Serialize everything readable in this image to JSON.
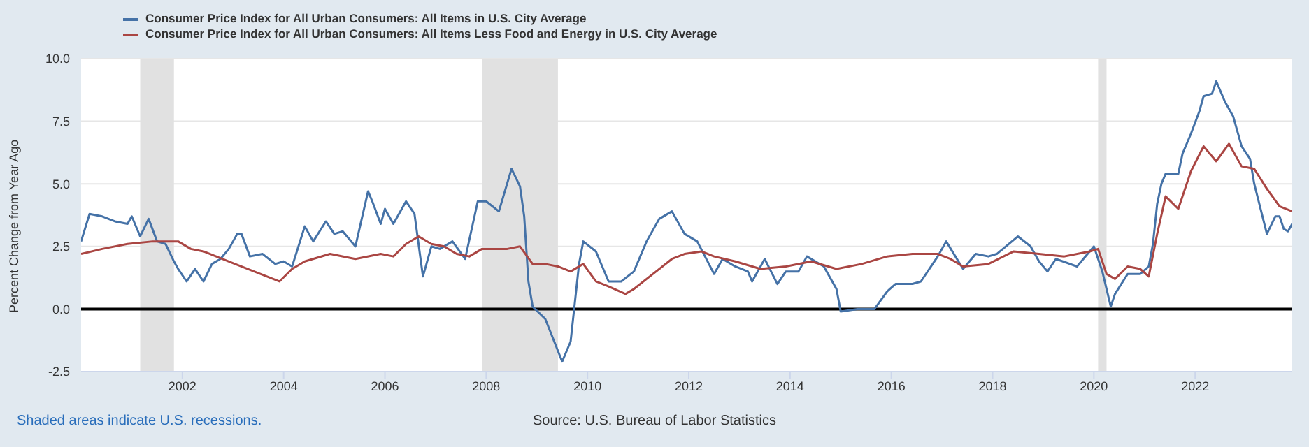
{
  "chart_data": {
    "type": "line",
    "ylabel": "Percent Change from Year Ago",
    "legend": "top left",
    "grid": "y",
    "marker": "none",
    "line_style": "solid",
    "xlim": [
      "2000-01",
      "2023-12"
    ],
    "xticks": [
      "2002",
      "2004",
      "2006",
      "2008",
      "2010",
      "2012",
      "2014",
      "2016",
      "2018",
      "2020",
      "2022"
    ],
    "ylim": [
      -2.5,
      10
    ],
    "yticks": [
      -2.5,
      {
        "value": 0,
        "label": "0.0"
      },
      2.5,
      {
        "value": 5,
        "label": "5.0"
      },
      7.5,
      {
        "value": 10,
        "label": "10.0"
      }
    ],
    "series": [
      {
        "name": "Consumer Price Index for All Urban Consumers: All Items in U.S. City Average",
        "color": "#4572a7",
        "x": [
          "2000-01",
          "2000-03",
          "2000-06",
          "2000-09",
          "2000-12",
          "2001-01",
          "2001-03",
          "2001-05",
          "2001-07",
          "2001-09",
          "2001-11",
          "2001-12",
          "2002-02",
          "2002-04",
          "2002-06",
          "2002-08",
          "2002-10",
          "2002-12",
          "2003-02",
          "2003-03",
          "2003-05",
          "2003-08",
          "2003-11",
          "2004-01",
          "2004-03",
          "2004-06",
          "2004-08",
          "2004-11",
          "2005-01",
          "2005-03",
          "2005-06",
          "2005-09",
          "2005-10",
          "2005-12",
          "2006-01",
          "2006-03",
          "2006-06",
          "2006-08",
          "2006-10",
          "2006-12",
          "2007-02",
          "2007-05",
          "2007-08",
          "2007-11",
          "2008-01",
          "2008-04",
          "2008-07",
          "2008-09",
          "2008-10",
          "2008-11",
          "2008-12",
          "2009-03",
          "2009-07",
          "2009-09",
          "2009-11",
          "2009-12",
          "2010-03",
          "2010-06",
          "2010-09",
          "2010-12",
          "2011-03",
          "2011-06",
          "2011-09",
          "2011-12",
          "2012-03",
          "2012-07",
          "2012-09",
          "2012-12",
          "2013-03",
          "2013-04",
          "2013-07",
          "2013-10",
          "2013-12",
          "2014-03",
          "2014-05",
          "2014-09",
          "2014-12",
          "2015-01",
          "2015-05",
          "2015-09",
          "2015-12",
          "2016-02",
          "2016-06",
          "2016-08",
          "2016-12",
          "2017-02",
          "2017-06",
          "2017-09",
          "2017-12",
          "2018-02",
          "2018-07",
          "2018-10",
          "2018-12",
          "2019-02",
          "2019-04",
          "2019-09",
          "2019-12",
          "2020-01",
          "2020-03",
          "2020-05",
          "2020-06",
          "2020-09",
          "2020-12",
          "2021-02",
          "2021-03",
          "2021-04",
          "2021-05",
          "2021-06",
          "2021-09",
          "2021-10",
          "2021-12",
          "2022-02",
          "2022-03",
          "2022-05",
          "2022-06",
          "2022-08",
          "2022-10",
          "2022-12",
          "2023-02",
          "2023-03",
          "2023-06",
          "2023-08",
          "2023-09",
          "2023-10",
          "2023-11",
          "2023-12"
        ],
        "values": [
          2.7,
          3.8,
          3.7,
          3.5,
          3.4,
          3.7,
          2.9,
          3.6,
          2.7,
          2.6,
          1.9,
          1.6,
          1.1,
          1.6,
          1.1,
          1.8,
          2.0,
          2.4,
          3.0,
          3.0,
          2.1,
          2.2,
          1.8,
          1.9,
          1.7,
          3.3,
          2.7,
          3.5,
          3.0,
          3.1,
          2.5,
          4.7,
          4.3,
          3.4,
          4.0,
          3.4,
          4.3,
          3.8,
          1.3,
          2.5,
          2.4,
          2.7,
          2.0,
          4.3,
          4.3,
          3.9,
          5.6,
          4.9,
          3.7,
          1.1,
          0.1,
          -0.4,
          -2.1,
          -1.3,
          1.8,
          2.7,
          2.3,
          1.1,
          1.1,
          1.5,
          2.7,
          3.6,
          3.9,
          3.0,
          2.7,
          1.4,
          2.0,
          1.7,
          1.5,
          1.1,
          2.0,
          1.0,
          1.5,
          1.5,
          2.1,
          1.7,
          0.8,
          -0.1,
          0.0,
          0.0,
          0.7,
          1.0,
          1.0,
          1.1,
          2.1,
          2.7,
          1.6,
          2.2,
          2.1,
          2.2,
          2.9,
          2.5,
          1.9,
          1.5,
          2.0,
          1.7,
          2.3,
          2.5,
          1.5,
          0.1,
          0.6,
          1.4,
          1.4,
          1.7,
          2.6,
          4.2,
          5.0,
          5.4,
          5.4,
          6.2,
          7.0,
          7.9,
          8.5,
          8.6,
          9.1,
          8.3,
          7.7,
          6.5,
          6.0,
          5.0,
          3.0,
          3.7,
          3.7,
          3.2,
          3.1,
          3.4
        ]
      },
      {
        "name": "Consumer Price Index for All Urban Consumers: All Items Less Food and Energy in U.S. City Average",
        "color": "#aa4643",
        "x": [
          "2000-01",
          "2000-06",
          "2000-12",
          "2001-06",
          "2001-12",
          "2002-03",
          "2002-06",
          "2002-12",
          "2003-06",
          "2003-12",
          "2004-03",
          "2004-06",
          "2004-12",
          "2005-06",
          "2005-12",
          "2006-03",
          "2006-06",
          "2006-09",
          "2006-12",
          "2007-03",
          "2007-06",
          "2007-09",
          "2007-12",
          "2008-06",
          "2008-09",
          "2008-12",
          "2009-03",
          "2009-06",
          "2009-09",
          "2009-12",
          "2010-03",
          "2010-06",
          "2010-10",
          "2010-12",
          "2011-03",
          "2011-06",
          "2011-09",
          "2011-12",
          "2012-04",
          "2012-07",
          "2012-12",
          "2013-06",
          "2013-12",
          "2014-06",
          "2014-12",
          "2015-06",
          "2015-12",
          "2016-06",
          "2016-12",
          "2017-03",
          "2017-06",
          "2017-12",
          "2018-06",
          "2018-12",
          "2019-06",
          "2019-12",
          "2020-02",
          "2020-04",
          "2020-06",
          "2020-09",
          "2020-12",
          "2021-02",
          "2021-04",
          "2021-06",
          "2021-09",
          "2021-12",
          "2022-03",
          "2022-06",
          "2022-09",
          "2022-12",
          "2023-03",
          "2023-06",
          "2023-09",
          "2023-12"
        ],
        "values": [
          2.2,
          2.4,
          2.6,
          2.7,
          2.7,
          2.4,
          2.3,
          1.9,
          1.5,
          1.1,
          1.6,
          1.9,
          2.2,
          2.0,
          2.2,
          2.1,
          2.6,
          2.9,
          2.6,
          2.5,
          2.2,
          2.1,
          2.4,
          2.4,
          2.5,
          1.8,
          1.8,
          1.7,
          1.5,
          1.8,
          1.1,
          0.9,
          0.6,
          0.8,
          1.2,
          1.6,
          2.0,
          2.2,
          2.3,
          2.1,
          1.9,
          1.6,
          1.7,
          1.9,
          1.6,
          1.8,
          2.1,
          2.2,
          2.2,
          2.0,
          1.7,
          1.8,
          2.3,
          2.2,
          2.1,
          2.3,
          2.4,
          1.4,
          1.2,
          1.7,
          1.6,
          1.3,
          3.0,
          4.5,
          4.0,
          5.5,
          6.5,
          5.9,
          6.6,
          5.7,
          5.6,
          4.8,
          4.1,
          3.9
        ]
      }
    ],
    "bands": [
      {
        "axis": "x",
        "from": "2001-03",
        "to": "2001-11",
        "color": "#e1e1e1"
      },
      {
        "axis": "x",
        "from": "2007-12",
        "to": "2009-06",
        "color": "#e1e1e1"
      },
      {
        "axis": "x",
        "from": "2020-02",
        "to": "2020-04",
        "color": "#e1e1e1"
      }
    ],
    "ref_lines": [
      {
        "axis": "y",
        "value": 0,
        "color": "#000000"
      }
    ],
    "annotations": [
      "Shaded areas indicate U.S. recessions.",
      "Source: U.S. Bureau of Labor Statistics"
    ]
  }
}
